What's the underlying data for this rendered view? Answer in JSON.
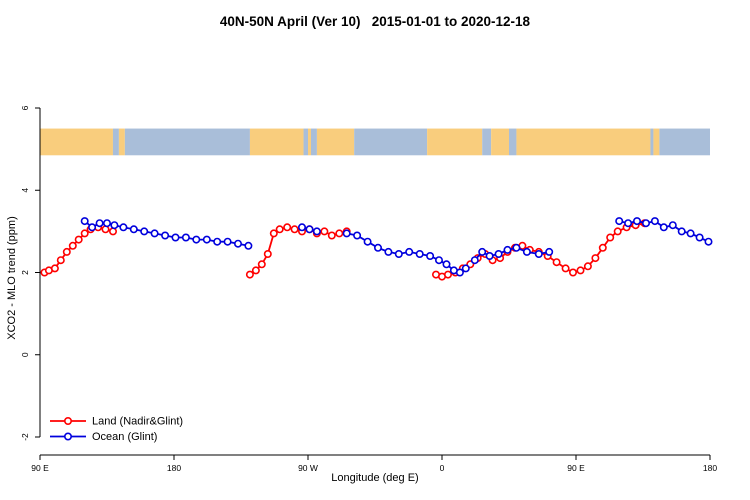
{
  "title": "40N-50N April (Ver 10)   2015-01-01 to 2020-12-18",
  "chart_data": {
    "type": "line",
    "title": "40N-50N April (Ver 10)   2015-01-01 to 2020-12-18",
    "xlabel": "Longitude (deg E)",
    "ylabel": "XCO2 - MLO trend (ppm)",
    "xlim": [
      90,
      540
    ],
    "ylim": [
      -2.8,
      7
    ],
    "grid": "off",
    "x_ticks": [
      {
        "pos": 90,
        "label": "90 E"
      },
      {
        "pos": 180,
        "label": "180"
      },
      {
        "pos": 270,
        "label": "90 W"
      },
      {
        "pos": 360,
        "label": "0"
      },
      {
        "pos": 450,
        "label": "90 E"
      },
      {
        "pos": 540,
        "label": "180"
      }
    ],
    "y_ticks": [
      {
        "pos": -2,
        "label": "-2"
      },
      {
        "pos": 0,
        "label": "0"
      },
      {
        "pos": 2,
        "label": "2"
      },
      {
        "pos": 4,
        "label": "4"
      },
      {
        "pos": 6,
        "label": "6"
      }
    ],
    "map_strip": {
      "y_from": 4.85,
      "y_to": 5.5,
      "land_color": "#f9cd7d",
      "ocean_color": "#a9bed9",
      "segments": [
        [
          90,
          139,
          "land"
        ],
        [
          139,
          143,
          "ocean"
        ],
        [
          143,
          147,
          "land"
        ],
        [
          147,
          231,
          "ocean"
        ],
        [
          231,
          267,
          "land"
        ],
        [
          267,
          270,
          "ocean"
        ],
        [
          270,
          272,
          "land"
        ],
        [
          272,
          276,
          "ocean"
        ],
        [
          276,
          301,
          "land"
        ],
        [
          301,
          350,
          "ocean"
        ],
        [
          350,
          387,
          "land"
        ],
        [
          387,
          393,
          "ocean"
        ],
        [
          393,
          405,
          "land"
        ],
        [
          405,
          410,
          "ocean"
        ],
        [
          410,
          500,
          "land"
        ],
        [
          500,
          502,
          "ocean"
        ],
        [
          502,
          506,
          "land"
        ],
        [
          506,
          540,
          "ocean"
        ]
      ]
    },
    "series": [
      {
        "name": "Land (Nadir&Glint)",
        "color": "#ff0000",
        "segments": [
          [
            [
              93,
              2.0
            ],
            [
              96,
              2.05
            ],
            [
              100,
              2.1
            ],
            [
              104,
              2.3
            ],
            [
              108,
              2.5
            ],
            [
              112,
              2.65
            ],
            [
              116,
              2.8
            ],
            [
              120,
              2.95
            ],
            [
              124,
              3.05
            ],
            [
              129,
              3.1
            ],
            [
              134,
              3.05
            ],
            [
              139,
              3.0
            ]
          ],
          [
            [
              231,
              1.95
            ],
            [
              235,
              2.05
            ],
            [
              239,
              2.2
            ],
            [
              243,
              2.45
            ],
            [
              247,
              2.95
            ],
            [
              251,
              3.05
            ],
            [
              256,
              3.1
            ],
            [
              261,
              3.05
            ],
            [
              266,
              3.0
            ],
            [
              271,
              3.05
            ],
            [
              276,
              2.95
            ],
            [
              281,
              3.0
            ],
            [
              286,
              2.9
            ],
            [
              291,
              2.95
            ],
            [
              296,
              3.0
            ]
          ],
          [
            [
              356,
              1.95
            ],
            [
              360,
              1.9
            ],
            [
              364,
              1.95
            ],
            [
              369,
              2.0
            ],
            [
              374,
              2.1
            ],
            [
              379,
              2.2
            ],
            [
              384,
              2.35
            ],
            [
              389,
              2.45
            ],
            [
              394,
              2.3
            ],
            [
              399,
              2.35
            ],
            [
              404,
              2.5
            ],
            [
              409,
              2.6
            ],
            [
              414,
              2.65
            ],
            [
              419,
              2.55
            ],
            [
              425,
              2.5
            ],
            [
              431,
              2.4
            ],
            [
              437,
              2.25
            ],
            [
              443,
              2.1
            ],
            [
              448,
              2.0
            ],
            [
              453,
              2.05
            ],
            [
              458,
              2.15
            ],
            [
              463,
              2.35
            ],
            [
              468,
              2.6
            ],
            [
              473,
              2.85
            ],
            [
              478,
              3.0
            ],
            [
              484,
              3.1
            ],
            [
              490,
              3.15
            ],
            [
              496,
              3.2
            ]
          ]
        ]
      },
      {
        "name": "Ocean (Glint)",
        "color": "#0000dd",
        "segments": [
          [
            [
              120,
              3.25
            ],
            [
              125,
              3.1
            ],
            [
              130,
              3.2
            ],
            [
              135,
              3.2
            ],
            [
              140,
              3.15
            ],
            [
              146,
              3.1
            ],
            [
              153,
              3.05
            ],
            [
              160,
              3.0
            ],
            [
              167,
              2.95
            ],
            [
              174,
              2.9
            ],
            [
              181,
              2.85
            ],
            [
              188,
              2.85
            ],
            [
              195,
              2.8
            ],
            [
              202,
              2.8
            ],
            [
              209,
              2.75
            ],
            [
              216,
              2.75
            ],
            [
              223,
              2.7
            ],
            [
              230,
              2.65
            ]
          ],
          [
            [
              266,
              3.1
            ],
            [
              271,
              3.05
            ],
            [
              276,
              3.0
            ]
          ],
          [
            [
              296,
              2.95
            ],
            [
              303,
              2.9
            ],
            [
              310,
              2.75
            ],
            [
              317,
              2.6
            ],
            [
              324,
              2.5
            ],
            [
              331,
              2.45
            ],
            [
              338,
              2.5
            ],
            [
              345,
              2.45
            ],
            [
              352,
              2.4
            ],
            [
              358,
              2.3
            ],
            [
              363,
              2.2
            ],
            [
              368,
              2.05
            ],
            [
              372,
              2.0
            ],
            [
              376,
              2.1
            ]
          ],
          [
            [
              382,
              2.3
            ],
            [
              387,
              2.5
            ],
            [
              392,
              2.4
            ],
            [
              398,
              2.45
            ],
            [
              404,
              2.55
            ],
            [
              410,
              2.6
            ],
            [
              417,
              2.5
            ],
            [
              425,
              2.45
            ],
            [
              432,
              2.5
            ]
          ],
          [
            [
              479,
              3.25
            ],
            [
              485,
              3.2
            ],
            [
              491,
              3.25
            ],
            [
              497,
              3.2
            ],
            [
              503,
              3.25
            ],
            [
              509,
              3.1
            ],
            [
              515,
              3.15
            ],
            [
              521,
              3.0
            ],
            [
              527,
              2.95
            ],
            [
              533,
              2.85
            ],
            [
              539,
              2.75
            ]
          ]
        ]
      }
    ],
    "legend": {
      "position": "bottom-left",
      "entries": [
        "Land (Nadir&Glint)",
        "Ocean (Glint)"
      ]
    }
  }
}
